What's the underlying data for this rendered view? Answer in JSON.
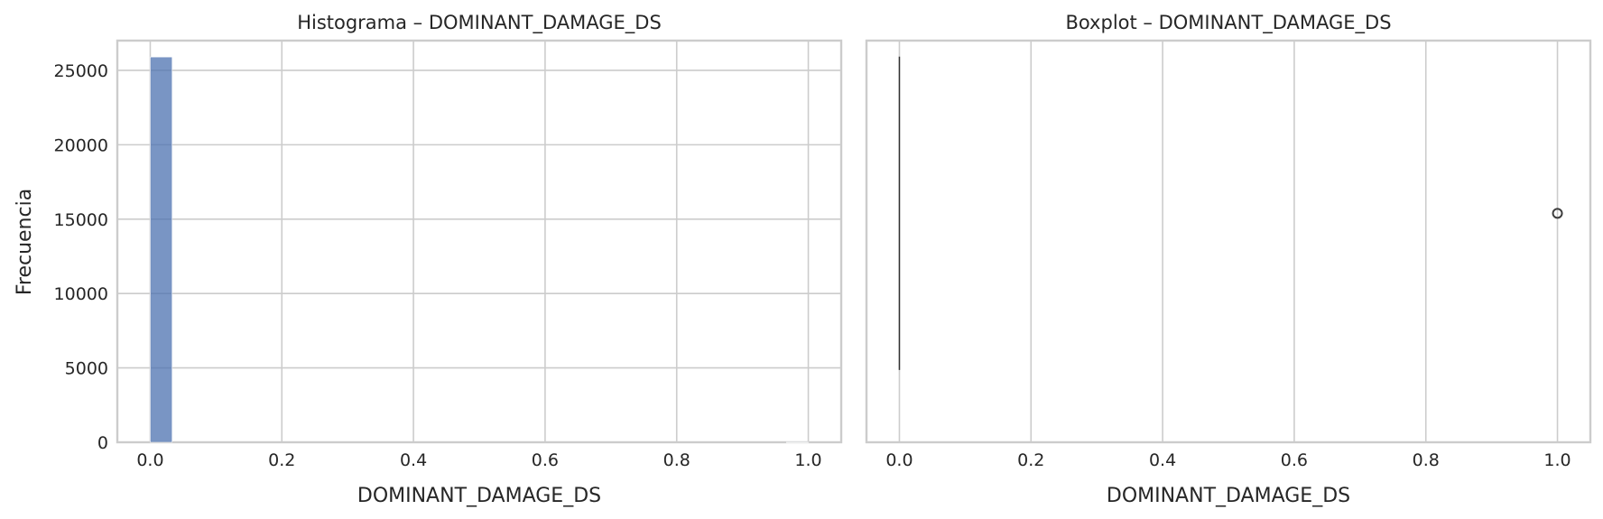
{
  "chart_data": [
    {
      "type": "bar",
      "title": "Histograma – DOMINANT_DAMAGE_DS",
      "xlabel": "DOMINANT_DAMAGE_DS",
      "ylabel": "Frecuencia",
      "xlim": [
        -0.05,
        1.05
      ],
      "ylim": [
        0,
        27000
      ],
      "xticks": [
        "0.0",
        "0.2",
        "0.4",
        "0.6",
        "0.8",
        "1.0"
      ],
      "yticks": [
        "0",
        "5000",
        "10000",
        "15000",
        "20000",
        "25000"
      ],
      "bin_width": 0.0333,
      "bins": [
        {
          "x_start": 0.0,
          "count": 25900
        },
        {
          "x_start": 0.9667,
          "count": 6
        }
      ],
      "bar_color": "#4c72b0",
      "grid": true
    },
    {
      "type": "box",
      "title": "Boxplot – DOMINANT_DAMAGE_DS",
      "xlabel": "DOMINANT_DAMAGE_DS",
      "xlim": [
        -0.05,
        1.05
      ],
      "xticks": [
        "0.0",
        "0.2",
        "0.4",
        "0.6",
        "0.8",
        "1.0"
      ],
      "box": {
        "min": 0,
        "q1": 0,
        "median": 0,
        "q3": 0,
        "max": 0
      },
      "outliers": [
        1.0
      ],
      "grid": true
    }
  ]
}
